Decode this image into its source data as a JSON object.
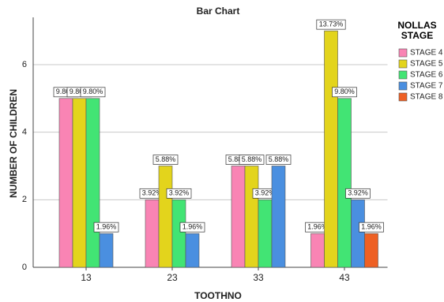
{
  "chart_data": {
    "type": "bar",
    "title": "Bar Chart",
    "x_label": "TOOTHNO",
    "y_label": "NUMBER OF CHILDREN",
    "categories": [
      "13",
      "23",
      "33",
      "43"
    ],
    "legend_title": "NOLLAS STAGE",
    "series": [
      {
        "name": "STAGE 4",
        "color": "#f984b4",
        "values": [
          5,
          2,
          3,
          1
        ],
        "value_labels": [
          "9.80%",
          "3.92%",
          "5.88%",
          "1.96%"
        ]
      },
      {
        "name": "STAGE 5",
        "color": "#e3d41c",
        "values": [
          5,
          3,
          3,
          7
        ],
        "value_labels": [
          "9.80%",
          "5.88%",
          "5.88%",
          "13.73%"
        ]
      },
      {
        "name": "STAGE 6",
        "color": "#42e474",
        "values": [
          5,
          2,
          2,
          5
        ],
        "value_labels": [
          "9.80%",
          "3.92%",
          "3.92%",
          "9.80%"
        ]
      },
      {
        "name": "STAGE 7",
        "color": "#4a8fe0",
        "values": [
          1,
          1,
          3,
          2
        ],
        "value_labels": [
          "1.96%",
          "1.96%",
          "5.88%",
          "3.92%"
        ]
      },
      {
        "name": "STAGE 8",
        "color": "#ee6024",
        "values": [
          null,
          null,
          null,
          1
        ],
        "value_labels": [
          null,
          null,
          null,
          "1.96%"
        ]
      }
    ],
    "ylim": [
      0,
      7.4
    ],
    "yticks": [
      0,
      2,
      4,
      6
    ],
    "grid": true
  }
}
